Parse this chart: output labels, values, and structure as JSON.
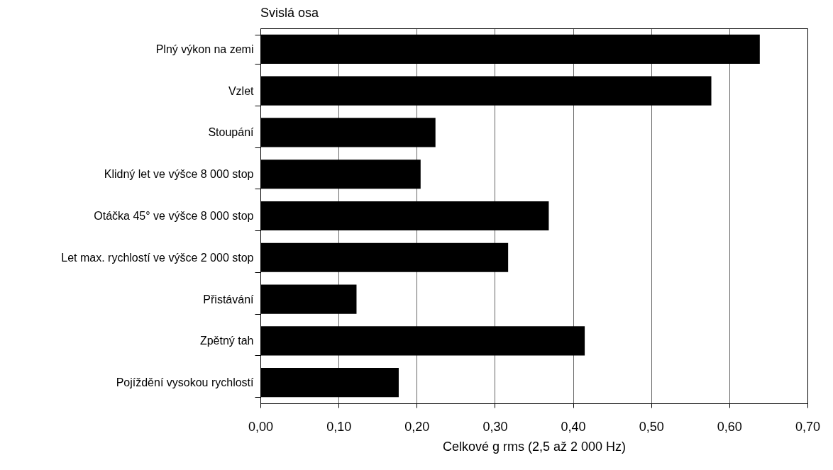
{
  "chart_data": {
    "type": "bar",
    "orientation": "horizontal",
    "title": "Svislá osa",
    "xlabel": "Celkové g rms (2,5 až 2 000 Hz)",
    "categories": [
      "Plný výkon na zemi",
      "Vzlet",
      "Stoupání",
      "Klidný let ve výšce 8 000 stop",
      "Otáčka 45° ve výšce 8 000 stop",
      "Let max. rychlostí ve výšce 2 000 stop",
      "Přistávání",
      "Zpětný tah",
      "Pojíždění vysokou rychlostí"
    ],
    "values": [
      0.639,
      0.577,
      0.224,
      0.205,
      0.369,
      0.317,
      0.123,
      0.415,
      0.177
    ],
    "color": "#000000",
    "xlim": [
      0,
      0.7
    ],
    "xticks": [
      {
        "value": 0,
        "label": "0,00"
      },
      {
        "value": 0.1,
        "label": "0,10"
      },
      {
        "value": 0.2,
        "label": "0,20"
      },
      {
        "value": 0.3,
        "label": "0,30"
      },
      {
        "value": 0.4,
        "label": "0,40"
      },
      {
        "value": 0.5,
        "label": "0,50"
      },
      {
        "value": 0.6,
        "label": "0,60"
      },
      {
        "value": 0.7,
        "label": "0,70"
      }
    ],
    "grid": "x"
  }
}
